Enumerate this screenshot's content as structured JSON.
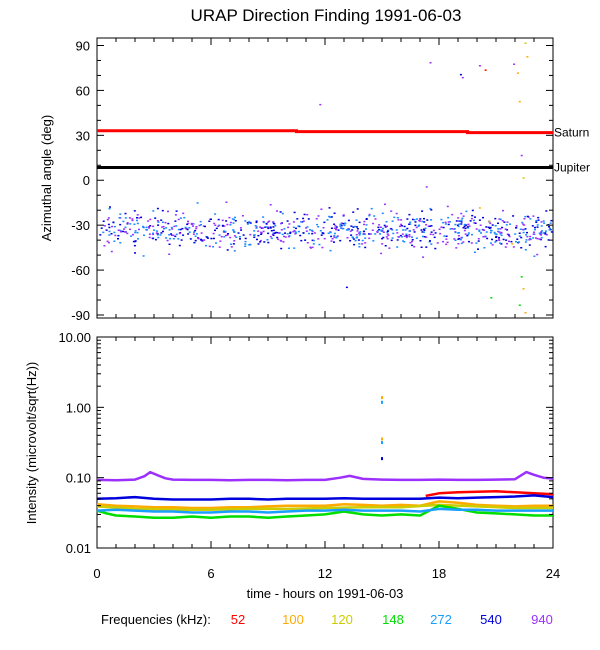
{
  "chart_data": [
    {
      "id": "azimuth",
      "type": "scatter",
      "title": "URAP Direction Finding  1991-06-03",
      "ylabel": "Azimuthal angle (deg)",
      "xlim": [
        0,
        24
      ],
      "ylim": [
        -92,
        95
      ],
      "yticks": [
        {
          "value": 90,
          "label": "90"
        },
        {
          "value": 60,
          "label": "60"
        },
        {
          "value": 30,
          "label": "30"
        },
        {
          "value": 0,
          "label": "0"
        },
        {
          "value": -30,
          "label": "-30"
        },
        {
          "value": -60,
          "label": "-60"
        },
        {
          "value": -90,
          "label": "-90"
        }
      ],
      "reference_lines": [
        {
          "name": "Saturn",
          "color": "#ff0000",
          "points": [
            [
              0,
              33
            ],
            [
              10.5,
              33
            ],
            [
              10.5,
              32.5
            ],
            [
              19.5,
              32.5
            ],
            [
              19.5,
              31.8
            ],
            [
              24,
              31.8
            ]
          ]
        },
        {
          "name": "Jupiter",
          "color": "#000000",
          "points": [
            [
              0,
              8.5
            ],
            [
              24,
              8.5
            ]
          ]
        }
      ],
      "scatter_band": {
        "x_range": [
          0.1,
          23.9
        ],
        "center": -33,
        "spread": 7,
        "outlier_low": -52,
        "outlier_high": -14,
        "count": 900,
        "colors": [
          "#9b30ff",
          "#0000dd",
          "#1a8cff"
        ]
      },
      "sparse_points": [
        {
          "x": 11.7,
          "y": 51,
          "color": "#9b30ff"
        },
        {
          "x": 13.1,
          "y": -71,
          "color": "#0000dd"
        },
        {
          "x": 17.3,
          "y": -4,
          "color": "#9b30ff"
        },
        {
          "x": 17.5,
          "y": 79,
          "color": "#9b30ff"
        },
        {
          "x": 19.1,
          "y": 71,
          "color": "#0000dd"
        },
        {
          "x": 19.2,
          "y": 69,
          "color": "#9b30ff"
        },
        {
          "x": 20.1,
          "y": 77,
          "color": "#9b30ff"
        },
        {
          "x": 20.4,
          "y": 74,
          "color": "#ff0000"
        },
        {
          "x": 20.7,
          "y": -78,
          "color": "#00dd00"
        },
        {
          "x": 20.6,
          "y": -27,
          "color": "#ffaa00"
        },
        {
          "x": 20.1,
          "y": -18,
          "color": "#ffaa00"
        },
        {
          "x": 21.9,
          "y": 78,
          "color": "#9b30ff"
        },
        {
          "x": 22.1,
          "y": 72,
          "color": "#ffaa00"
        },
        {
          "x": 22.2,
          "y": 53,
          "color": "#ffaa00"
        },
        {
          "x": 22.3,
          "y": 17,
          "color": "#9b30ff"
        },
        {
          "x": 22.4,
          "y": 2,
          "color": "#cccc00"
        },
        {
          "x": 22.3,
          "y": -64,
          "color": "#00dd00"
        },
        {
          "x": 22.4,
          "y": -72,
          "color": "#ffaa00"
        },
        {
          "x": 22.2,
          "y": -83,
          "color": "#00dd00"
        },
        {
          "x": 22.5,
          "y": -88,
          "color": "#ffaa00"
        },
        {
          "x": 22.5,
          "y": 92,
          "color": "#cccc00"
        },
        {
          "x": 22.6,
          "y": 83,
          "color": "#ffaa00"
        },
        {
          "x": 21.8,
          "y": -42,
          "color": "#ffaa00"
        }
      ]
    },
    {
      "id": "intensity",
      "type": "line",
      "scale": "log",
      "ylabel": "Intensity (microvolt/sqrt(Hz))",
      "xlabel": "time - hours on 1991-06-03",
      "xlim": [
        0,
        24
      ],
      "ylim": [
        0.01,
        10
      ],
      "xticks": [
        {
          "value": 0,
          "label": "0"
        },
        {
          "value": 6,
          "label": "6"
        },
        {
          "value": 12,
          "label": "12"
        },
        {
          "value": 18,
          "label": "18"
        },
        {
          "value": 24,
          "label": "24"
        }
      ],
      "yticks": [
        {
          "value": 10,
          "label": "10.00"
        },
        {
          "value": 1,
          "label": "1.00"
        },
        {
          "value": 0.1,
          "label": "0.10"
        },
        {
          "value": 0.01,
          "label": "0.01"
        }
      ],
      "series": [
        {
          "name": "52",
          "color": "#ff0000",
          "x": [
            17.3,
            18,
            19,
            20,
            21,
            22,
            23,
            24
          ],
          "values": [
            0.055,
            0.06,
            0.062,
            0.063,
            0.064,
            0.062,
            0.06,
            0.058
          ]
        },
        {
          "name": "100",
          "color": "#ffaa00",
          "x": [
            0,
            1,
            2,
            3,
            4,
            5,
            6,
            7,
            8,
            9,
            10,
            11,
            12,
            13,
            14,
            15,
            16,
            17,
            18,
            19,
            20,
            21,
            22,
            23,
            24
          ],
          "values": [
            0.042,
            0.04,
            0.039,
            0.038,
            0.038,
            0.037,
            0.037,
            0.038,
            0.038,
            0.039,
            0.04,
            0.04,
            0.04,
            0.042,
            0.041,
            0.04,
            0.041,
            0.04,
            0.046,
            0.044,
            0.041,
            0.04,
            0.039,
            0.04,
            0.04
          ]
        },
        {
          "name": "120",
          "color": "#cccc00",
          "x": [
            0,
            2,
            4,
            6,
            8,
            10,
            12,
            14,
            16,
            18,
            20,
            22,
            24
          ],
          "values": [
            0.039,
            0.036,
            0.035,
            0.035,
            0.036,
            0.036,
            0.037,
            0.038,
            0.038,
            0.041,
            0.039,
            0.037,
            0.037
          ]
        },
        {
          "name": "148",
          "color": "#00dd00",
          "x": [
            0,
            0.5,
            1,
            2,
            3,
            4,
            5,
            6,
            7,
            8,
            9,
            10,
            11,
            12,
            13,
            14,
            15,
            16,
            17,
            18,
            19,
            20,
            21,
            22,
            23,
            24
          ],
          "values": [
            0.034,
            0.031,
            0.029,
            0.028,
            0.027,
            0.027,
            0.028,
            0.027,
            0.028,
            0.028,
            0.027,
            0.028,
            0.029,
            0.03,
            0.033,
            0.03,
            0.029,
            0.03,
            0.029,
            0.04,
            0.036,
            0.032,
            0.031,
            0.03,
            0.029,
            0.029
          ]
        },
        {
          "name": "272",
          "color": "#1a9fff",
          "x": [
            0,
            1,
            2,
            3,
            4,
            5,
            6,
            7,
            8,
            9,
            10,
            11,
            12,
            13,
            14,
            15,
            16,
            17,
            18,
            19,
            20,
            21,
            22,
            23,
            24
          ],
          "values": [
            0.034,
            0.035,
            0.034,
            0.033,
            0.033,
            0.032,
            0.032,
            0.033,
            0.033,
            0.032,
            0.033,
            0.034,
            0.034,
            0.035,
            0.034,
            0.034,
            0.034,
            0.033,
            0.036,
            0.035,
            0.035,
            0.034,
            0.034,
            0.034,
            0.034
          ]
        },
        {
          "name": "540",
          "color": "#0000dd",
          "x": [
            0,
            1,
            2,
            3,
            4,
            5,
            6,
            7,
            8,
            9,
            10,
            11,
            12,
            13,
            14,
            15,
            16,
            17,
            18,
            19,
            20,
            21,
            22,
            23,
            24
          ],
          "values": [
            0.05,
            0.051,
            0.053,
            0.05,
            0.049,
            0.049,
            0.049,
            0.05,
            0.05,
            0.049,
            0.05,
            0.05,
            0.05,
            0.051,
            0.05,
            0.05,
            0.05,
            0.05,
            0.052,
            0.051,
            0.052,
            0.053,
            0.054,
            0.056,
            0.053
          ]
        },
        {
          "name": "940",
          "color": "#9b30ff",
          "x": [
            0,
            1,
            2,
            2.5,
            2.8,
            3.2,
            3.6,
            4,
            5,
            6,
            7,
            8,
            9,
            10,
            11,
            12,
            12.8,
            13.3,
            14,
            15,
            16,
            17,
            18,
            19,
            20,
            21,
            22,
            22.6,
            23,
            23.5,
            24
          ],
          "values": [
            0.093,
            0.092,
            0.094,
            0.105,
            0.12,
            0.108,
            0.098,
            0.094,
            0.093,
            0.093,
            0.092,
            0.093,
            0.093,
            0.092,
            0.093,
            0.093,
            0.1,
            0.106,
            0.096,
            0.094,
            0.093,
            0.093,
            0.094,
            0.093,
            0.093,
            0.094,
            0.095,
            0.12,
            0.11,
            0.1,
            0.097
          ]
        }
      ],
      "points": [
        {
          "x": 15.0,
          "y": 1.4,
          "color": "#ffaa00"
        },
        {
          "x": 15.0,
          "y": 1.2,
          "color": "#1a9fff"
        },
        {
          "x": 15.0,
          "y": 0.36,
          "color": "#ffaa00"
        },
        {
          "x": 15.0,
          "y": 0.32,
          "color": "#1a9fff"
        },
        {
          "x": 15.0,
          "y": 0.19,
          "color": "#0000dd"
        }
      ]
    }
  ],
  "legend": {
    "label": "Frequencies (kHz):",
    "items": [
      {
        "text": "52",
        "color": "#ff0000"
      },
      {
        "text": "100",
        "color": "#ffaa00"
      },
      {
        "text": "120",
        "color": "#cccc00"
      },
      {
        "text": "148",
        "color": "#00dd00"
      },
      {
        "text": "272",
        "color": "#1a9fff"
      },
      {
        "text": "540",
        "color": "#0000dd"
      },
      {
        "text": "940",
        "color": "#9b30ff"
      }
    ]
  }
}
